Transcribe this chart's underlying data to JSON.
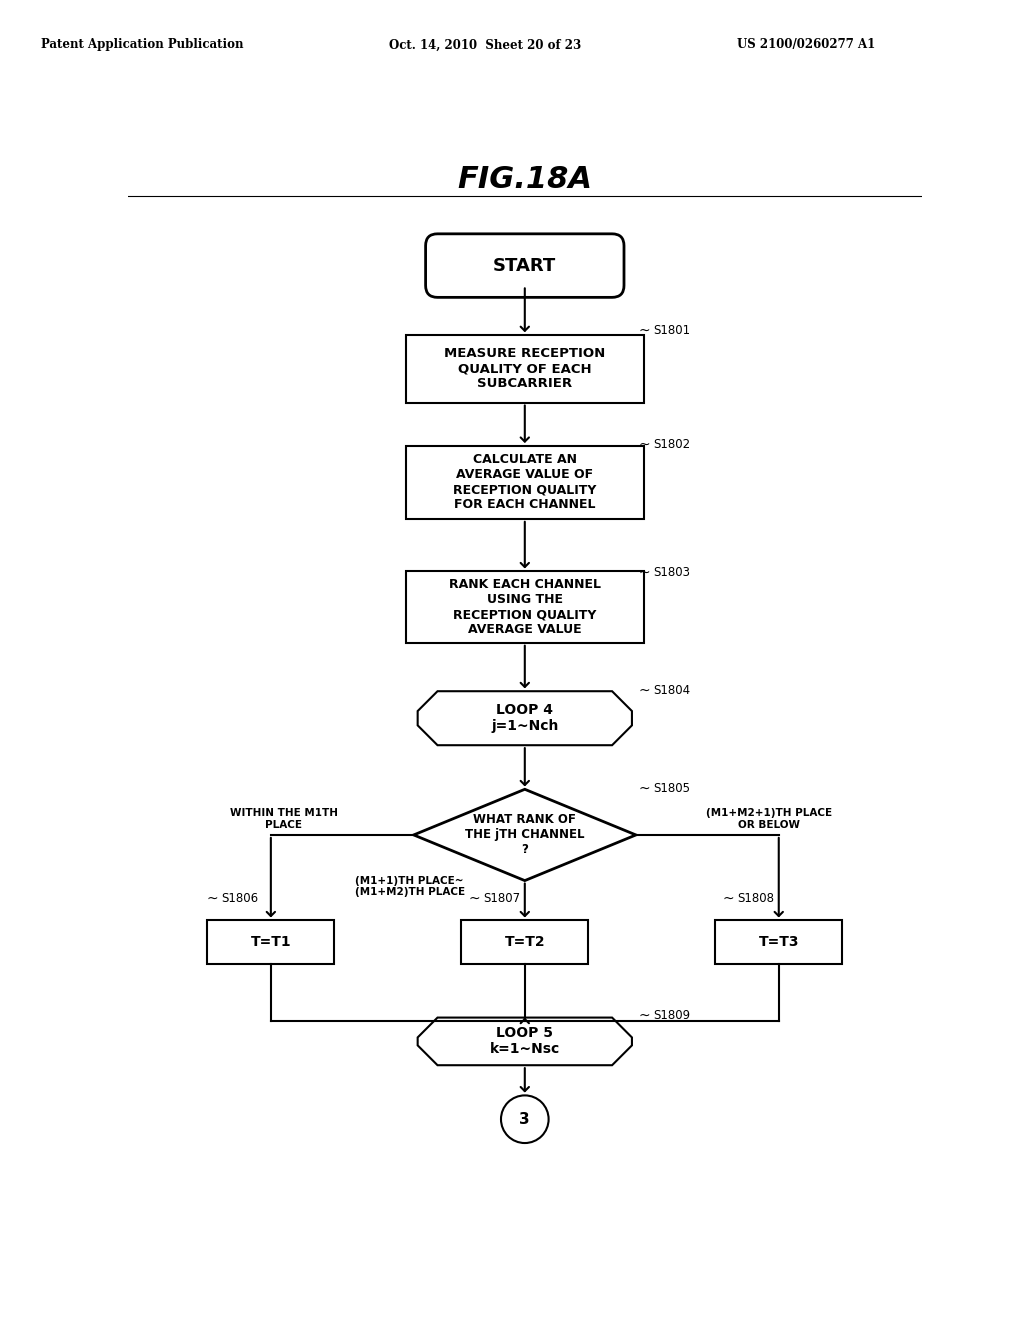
{
  "title": "FIG.18A",
  "header_left": "Patent Application Publication",
  "header_mid": "Oct. 14, 2010  Sheet 20 of 23",
  "header_right": "US 2100/0260277 A1",
  "bg_color": "#ffffff",
  "text_color": "#000000",
  "start_label": "START",
  "s1801_label": "MEASURE RECEPTION\nQUALITY OF EACH\nSUBCARRIER",
  "s1802_label": "CALCULATE AN\nAVERAGE VALUE OF\nRECEPTION QUALITY\nFOR EACH CHANNEL",
  "s1803_label": "RANK EACH CHANNEL\nUSING THE\nRECEPTION QUALITY\nAVERAGE VALUE",
  "s1804_label": "LOOP 4\nj=1~Nch",
  "s1805_label": "WHAT RANK OF\nTHE jTH CHANNEL\n?",
  "s1806_label": "T=T1",
  "s1807_label": "T=T2",
  "s1808_label": "T=T3",
  "s1809_label": "LOOP 5\nk=1~Nsc",
  "connector_label": "3",
  "within_m1": "WITHIN THE M1TH\nPLACE",
  "m1_m2_range": "(M1+1)TH PLACE~\n(M1+M2)TH PLACE",
  "m1_m2_below": "(M1+M2+1)TH PLACE\nOR BELOW"
}
